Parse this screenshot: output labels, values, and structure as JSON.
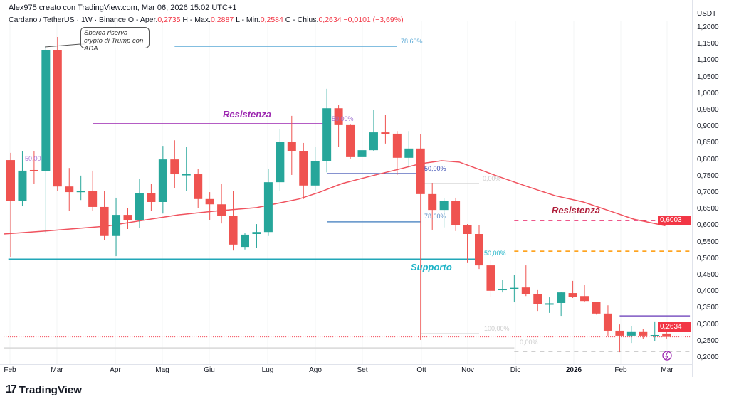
{
  "header": {
    "credit": "Alex975 creato con TradingView.com, Mar 06, 2026 15:02 UTC+1",
    "symbol": "Cardano / TetherUS · 1W · Binance",
    "o_label": "O - Aper.",
    "o": "0,2735",
    "h_label": "H - Max.",
    "h": "0,2887",
    "l_label": "L - Min.",
    "l": "0,2584",
    "c_label": "C - Chius.",
    "c": "0,2634",
    "change": "−0,0101 (−3,69%)"
  },
  "axis": {
    "currency": "USDT",
    "ticks": [
      "1,2000",
      "1,1500",
      "1,1000",
      "1,0500",
      "1,0000",
      "0,9500",
      "0,9000",
      "0,8500",
      "0,8000",
      "0,7500",
      "0,7000",
      "0,6500",
      "0,6000",
      "0,5500",
      "0,5000",
      "0,4500",
      "0,4000",
      "0,3500",
      "0,3000",
      "0,2500",
      "0,2000"
    ],
    "ma_badge": "0,6003",
    "price_badge": "0,2634"
  },
  "time_labels": [
    "Feb",
    "Mar",
    "Apr",
    "Mag",
    "Giu",
    "Lug",
    "Ago",
    "Set",
    "Ott",
    "Nov",
    "Dic",
    "2026",
    "Feb",
    "Mar"
  ],
  "callout": {
    "text": "Sbarca riserva crypto di Trump con ADA"
  },
  "annotations": {
    "res1": "Resistenza",
    "res2": "Resistenza",
    "support": "Supporto",
    "fib_a": "78,60%",
    "fib_b": "50,00%",
    "fib_c": "50,00%",
    "fib_d": "78,60%",
    "fib_e": "50,00",
    "fib_f": "0,00%",
    "fib_g": "50,00%",
    "fib_h": "100,00%",
    "fib_i": "0,00%"
  },
  "colors": {
    "up": "#26a69a",
    "down": "#ef5350",
    "ma": "#f0525e",
    "support": "#22b5c8",
    "resistance_purple": "#9c27b0",
    "resistance_red": "#e91e63",
    "fib_orange": "#ff9800"
  },
  "footer": {
    "brand": "TradingView"
  },
  "chart_data": {
    "type": "candlestick",
    "ylim": [
      0.2,
      1.2
    ],
    "ohlc": [
      [
        0.799,
        0.821,
        0.504,
        0.676
      ],
      [
        0.676,
        0.827,
        0.659,
        0.767
      ],
      [
        0.769,
        0.827,
        0.728,
        0.767
      ],
      [
        0.765,
        1.144,
        0.577,
        1.133
      ],
      [
        1.133,
        1.172,
        0.706,
        0.719
      ],
      [
        0.719,
        0.775,
        0.644,
        0.702
      ],
      [
        0.702,
        0.752,
        0.678,
        0.706
      ],
      [
        0.706,
        0.767,
        0.646,
        0.657
      ],
      [
        0.657,
        0.706,
        0.556,
        0.569
      ],
      [
        0.569,
        0.685,
        0.508,
        0.633
      ],
      [
        0.633,
        0.653,
        0.59,
        0.616
      ],
      [
        0.616,
        0.741,
        0.594,
        0.7
      ],
      [
        0.7,
        0.726,
        0.646,
        0.672
      ],
      [
        0.672,
        0.842,
        0.637,
        0.801
      ],
      [
        0.801,
        0.859,
        0.713,
        0.756
      ],
      [
        0.756,
        0.838,
        0.706,
        0.757
      ],
      [
        0.756,
        0.773,
        0.653,
        0.681
      ],
      [
        0.681,
        0.702,
        0.618,
        0.665
      ],
      [
        0.665,
        0.726,
        0.607,
        0.629
      ],
      [
        0.629,
        0.706,
        0.525,
        0.543
      ],
      [
        0.536,
        0.577,
        0.528,
        0.573
      ],
      [
        0.575,
        0.605,
        0.534,
        0.581
      ],
      [
        0.581,
        0.773,
        0.569,
        0.732
      ],
      [
        0.732,
        0.892,
        0.706,
        0.853
      ],
      [
        0.853,
        0.933,
        0.754,
        0.827
      ],
      [
        0.827,
        0.851,
        0.681,
        0.722
      ],
      [
        0.722,
        0.838,
        0.706,
        0.797
      ],
      [
        0.797,
        1.015,
        0.762,
        0.956
      ],
      [
        0.956,
        0.965,
        0.838,
        0.905
      ],
      [
        0.905,
        0.907,
        0.803,
        0.808
      ],
      [
        0.808,
        0.847,
        0.778,
        0.829
      ],
      [
        0.829,
        0.95,
        0.825,
        0.883
      ],
      [
        0.883,
        0.935,
        0.849,
        0.881
      ],
      [
        0.879,
        0.887,
        0.754,
        0.806
      ],
      [
        0.806,
        0.887,
        0.778,
        0.834
      ],
      [
        0.834,
        0.879,
        0.254,
        0.696
      ],
      [
        0.696,
        0.73,
        0.588,
        0.648
      ],
      [
        0.648,
        0.683,
        0.595,
        0.676
      ],
      [
        0.676,
        0.685,
        0.584,
        0.603
      ],
      [
        0.603,
        0.605,
        0.487,
        0.575
      ],
      [
        0.575,
        0.603,
        0.469,
        0.48
      ],
      [
        0.48,
        0.495,
        0.383,
        0.403
      ],
      [
        0.407,
        0.435,
        0.398,
        0.409
      ],
      [
        0.411,
        0.45,
        0.368,
        0.412
      ],
      [
        0.413,
        0.48,
        0.387,
        0.392
      ],
      [
        0.392,
        0.405,
        0.342,
        0.362
      ],
      [
        0.364,
        0.383,
        0.336,
        0.365
      ],
      [
        0.366,
        0.4,
        0.327,
        0.398
      ],
      [
        0.396,
        0.433,
        0.381,
        0.385
      ],
      [
        0.387,
        0.422,
        0.368,
        0.372
      ],
      [
        0.37,
        0.37,
        0.331,
        0.334
      ],
      [
        0.334,
        0.359,
        0.267,
        0.282
      ],
      [
        0.282,
        0.301,
        0.217,
        0.267
      ],
      [
        0.267,
        0.297,
        0.245,
        0.278
      ],
      [
        0.278,
        0.288,
        0.256,
        0.267
      ],
      [
        0.267,
        0.308,
        0.25,
        0.269
      ],
      [
        0.2735,
        0.2887,
        0.2584,
        0.2634
      ]
    ],
    "ma": [
      [
        -0.6,
        0.575
      ],
      [
        2.9,
        0.584
      ],
      [
        8.2,
        0.599
      ],
      [
        11.2,
        0.616
      ],
      [
        14.3,
        0.633
      ],
      [
        17.3,
        0.644
      ],
      [
        21,
        0.655
      ],
      [
        24.6,
        0.681
      ],
      [
        26.4,
        0.702
      ],
      [
        28.3,
        0.728
      ],
      [
        30.7,
        0.75
      ],
      [
        33.1,
        0.771
      ],
      [
        35,
        0.788
      ],
      [
        36.8,
        0.797
      ],
      [
        38.3,
        0.793
      ],
      [
        41.6,
        0.75
      ],
      [
        44.1,
        0.719
      ],
      [
        46.5,
        0.691
      ],
      [
        48.9,
        0.672
      ],
      [
        51.4,
        0.642
      ],
      [
        53.2,
        0.62
      ],
      [
        55.9,
        0.6
      ]
    ],
    "levels": [
      {
        "price": 1.144,
        "from": 14,
        "to": 33,
        "color": "#5aa9d6",
        "style": "solid"
      },
      {
        "price": 0.909,
        "from": 7,
        "to": 27,
        "color": "#9c27b0",
        "style": "solid"
      },
      {
        "price": 0.758,
        "from": 27,
        "to": 35,
        "color": "#3f51b5",
        "style": "solid"
      },
      {
        "price": 0.612,
        "from": 27,
        "to": 35,
        "color": "#5b8fc7",
        "style": "solid"
      },
      {
        "price": 0.499,
        "from": -0.2,
        "to": 39.7,
        "color": "#22a7b8",
        "style": "solid"
      },
      {
        "price": 0.728,
        "from": 35,
        "to": 40,
        "color": "#d8d8d8",
        "style": "solid"
      },
      {
        "price": 0.273,
        "from": 35,
        "to": 40,
        "color": "#d8d8d8",
        "style": "solid"
      },
      {
        "price": 0.23,
        "from": -0.6,
        "to": 43,
        "color": "#d8d8d8",
        "style": "solid"
      },
      {
        "price": 0.616,
        "from": 43,
        "to": 58,
        "color": "#e91e63",
        "style": "dashed"
      },
      {
        "price": 0.523,
        "from": 43,
        "to": 58,
        "color": "#ff9800",
        "style": "dashed"
      },
      {
        "price": 0.327,
        "from": 52,
        "to": 58,
        "color": "#7e57c2",
        "style": "solid"
      },
      {
        "price": 0.219,
        "from": 43,
        "to": 58,
        "color": "#c8c8c8",
        "style": "dashed"
      },
      {
        "price": 0.2634,
        "from": -0.6,
        "to": 58,
        "color": "#f23645",
        "style": "dotted"
      }
    ]
  }
}
